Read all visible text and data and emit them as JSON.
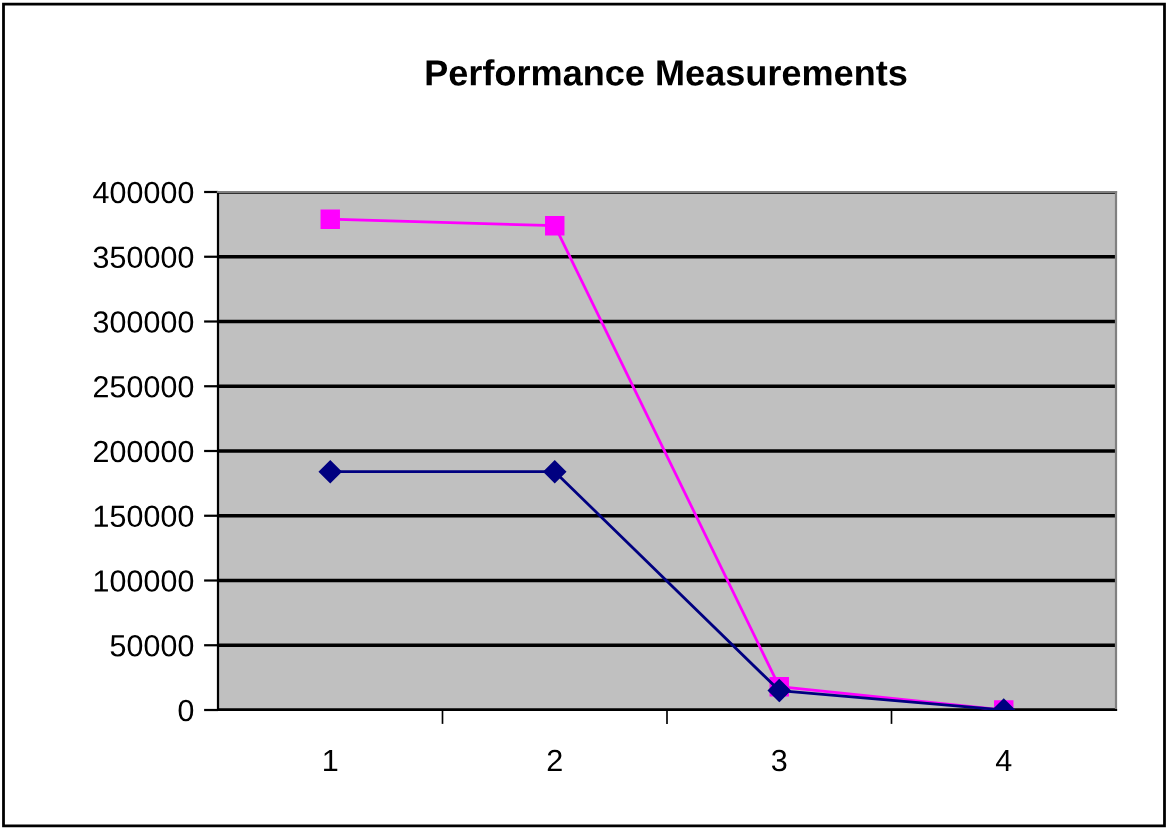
{
  "chart_data": {
    "type": "line",
    "title": "Performance Measurements",
    "categories": [
      "1",
      "2",
      "3",
      "4"
    ],
    "series": [
      {
        "color": "#000080",
        "marker": "diamond",
        "values": [
          184000,
          184000,
          15000,
          0
        ]
      },
      {
        "color": "#ff00ff",
        "marker": "square",
        "values": [
          379000,
          374000,
          18000,
          0
        ]
      }
    ],
    "ylim": [
      0,
      400000
    ],
    "yticks": [
      0,
      50000,
      100000,
      150000,
      200000,
      250000,
      300000,
      350000,
      400000
    ],
    "grid": "y",
    "legend": false,
    "line_style": "solid"
  }
}
